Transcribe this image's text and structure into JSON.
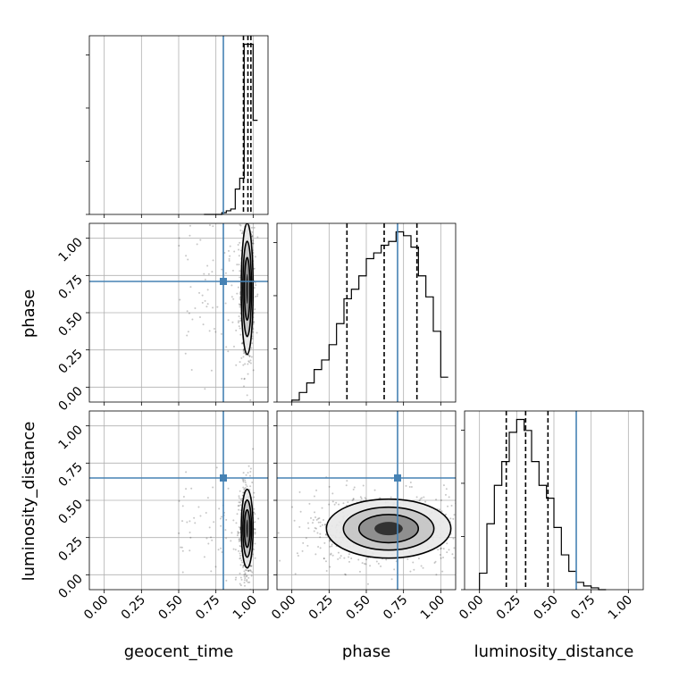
{
  "chart_data": {
    "type": "corner",
    "parameters": [
      "geocent_time",
      "phase",
      "luminosity_distance"
    ],
    "axis_ticks": [
      "0.00",
      "0.25",
      "0.50",
      "0.75",
      "1.00"
    ],
    "axis_range": [
      -0.1,
      1.1
    ],
    "grid": true,
    "colors": {
      "truth": "#4682b4",
      "hist": "#000000",
      "density": "#555555"
    },
    "truths": {
      "geocent_time": 0.8,
      "phase": 0.71,
      "luminosity_distance": 0.65
    },
    "quantiles": {
      "geocent_time": [
        0.935,
        0.965,
        0.985
      ],
      "phase": [
        0.37,
        0.62,
        0.84
      ],
      "luminosity_distance": [
        0.18,
        0.31,
        0.46
      ]
    },
    "histograms": {
      "geocent_time": {
        "bin_edges": [
          0.67,
          0.7,
          0.73,
          0.76,
          0.79,
          0.82,
          0.85,
          0.88,
          0.91,
          0.94,
          0.97,
          1.0,
          1.03
        ],
        "counts": [
          0,
          0,
          0,
          0,
          1,
          2,
          3,
          14,
          20,
          94,
          94,
          52
        ]
      },
      "phase": {
        "bin_edges": [
          0.0,
          0.05,
          0.1,
          0.15,
          0.2,
          0.25,
          0.3,
          0.35,
          0.4,
          0.45,
          0.5,
          0.55,
          0.6,
          0.65,
          0.7,
          0.75,
          0.8,
          0.85,
          0.9,
          0.95,
          1.0,
          1.05
        ],
        "counts": [
          1,
          5,
          10,
          17,
          22,
          30,
          41,
          54,
          59,
          66,
          75,
          78,
          82,
          84,
          89,
          87,
          81,
          66,
          55,
          37,
          13
        ]
      },
      "luminosity_distance": {
        "bin_edges": [
          0.0,
          0.05,
          0.1,
          0.15,
          0.2,
          0.25,
          0.3,
          0.35,
          0.4,
          0.45,
          0.5,
          0.55,
          0.6,
          0.65,
          0.7,
          0.75,
          0.8,
          0.85
        ],
        "counts": [
          9,
          36,
          57,
          70,
          86,
          93,
          87,
          70,
          57,
          50,
          34,
          19,
          10,
          4,
          2,
          1,
          0
        ]
      }
    },
    "density_2d": [
      {
        "x": "geocent_time",
        "y": "phase",
        "center": [
          0.96,
          0.66
        ],
        "spread": [
          0.018,
          0.2
        ],
        "scatter_range_x": [
          0.5,
          1.0
        ]
      },
      {
        "x": "geocent_time",
        "y": "luminosity_distance",
        "center": [
          0.96,
          0.31
        ],
        "spread": [
          0.018,
          0.12
        ],
        "scatter_range_x": [
          0.5,
          1.0
        ]
      },
      {
        "x": "phase",
        "y": "luminosity_distance",
        "center": [
          0.65,
          0.31
        ],
        "spread": [
          0.19,
          0.09
        ],
        "scatter_range_x": [
          0.0,
          1.05
        ]
      }
    ]
  }
}
